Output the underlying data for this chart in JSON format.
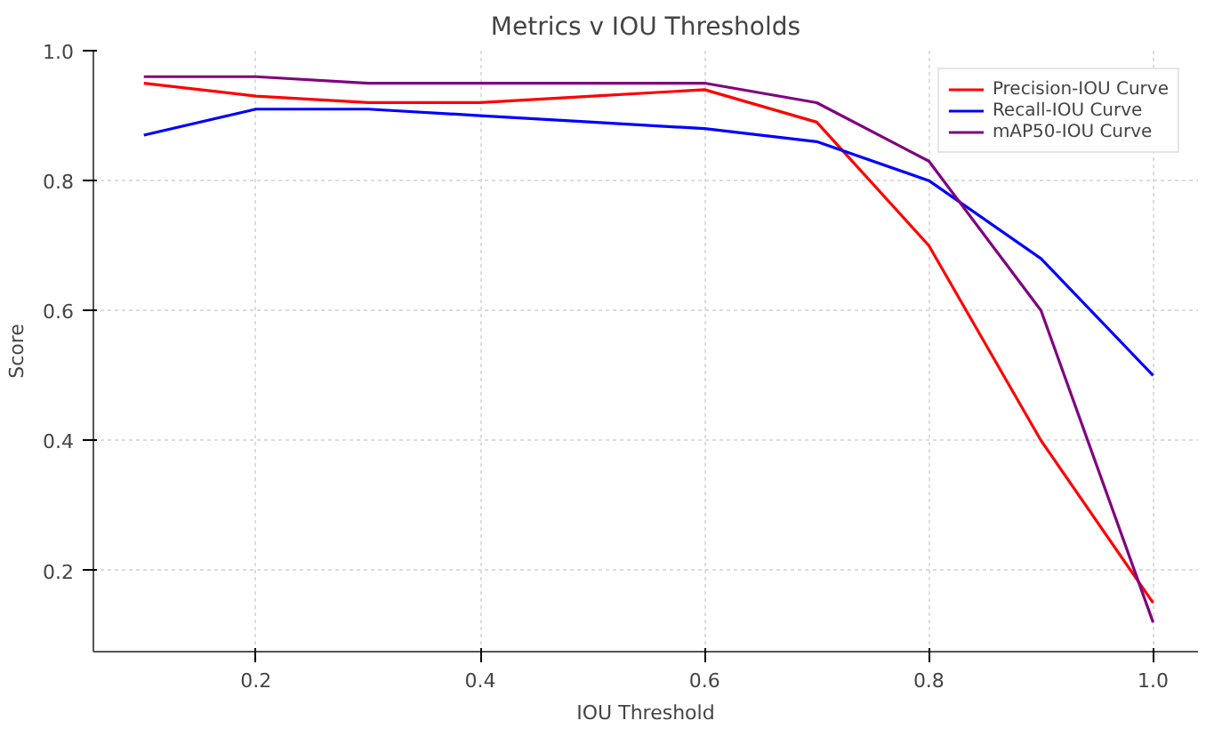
{
  "chart_data": {
    "type": "line",
    "title": "Metrics v IOU Thresholds",
    "xlabel": "IOU Threshold",
    "ylabel": "Score",
    "x": [
      0.1,
      0.2,
      0.3,
      0.4,
      0.5,
      0.6,
      0.7,
      0.8,
      0.9,
      1.0
    ],
    "series": [
      {
        "name": "Precision-IOU Curve",
        "color": "#ff0000",
        "values": [
          0.95,
          0.93,
          0.92,
          0.92,
          0.93,
          0.94,
          0.89,
          0.7,
          0.4,
          0.15
        ]
      },
      {
        "name": "Recall-IOU Curve",
        "color": "#0000ff",
        "values": [
          0.87,
          0.91,
          0.91,
          0.9,
          0.89,
          0.88,
          0.86,
          0.8,
          0.68,
          0.5
        ]
      },
      {
        "name": "mAP50-IOU Curve",
        "color": "#800080",
        "values": [
          0.96,
          0.96,
          0.95,
          0.95,
          0.95,
          0.95,
          0.92,
          0.83,
          0.6,
          0.12
        ]
      }
    ],
    "xlim": [
      0.055,
      1.04
    ],
    "ylim": [
      0.075,
      1.0
    ],
    "xticks": [
      0.2,
      0.4,
      0.6,
      0.8,
      {
        "value": 1,
        "label": "1.0"
      }
    ],
    "yticks": [
      0.2,
      0.4,
      0.6,
      0.8,
      {
        "value": 1,
        "label": "1.0"
      }
    ],
    "grid": true,
    "legend": "top right",
    "line_style": "solid",
    "marker": "none"
  }
}
